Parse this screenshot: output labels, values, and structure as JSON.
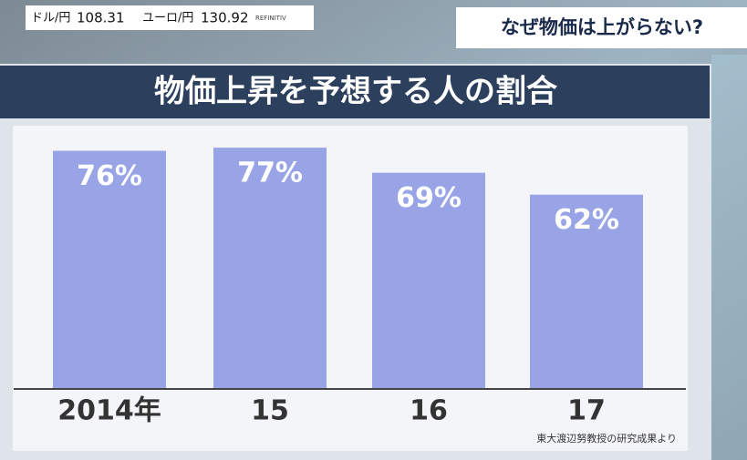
{
  "ticker": {
    "items": [
      {
        "label": "ドル/円",
        "value": "108.31"
      },
      {
        "label": "ユーロ/円",
        "value": "130.92"
      }
    ],
    "provider": "REFINITIV"
  },
  "headline": "なぜ物価は上がらない?",
  "chart_data": {
    "type": "bar",
    "title": "物価上昇を予想する人の割合",
    "categories": [
      "2014年",
      "15",
      "16",
      "17"
    ],
    "values": [
      76,
      77,
      69,
      62
    ],
    "value_labels": [
      "76%",
      "77%",
      "69%",
      "62%"
    ],
    "color": "#98a4e6",
    "source": "東大渡辺努教授の研究成果より"
  }
}
